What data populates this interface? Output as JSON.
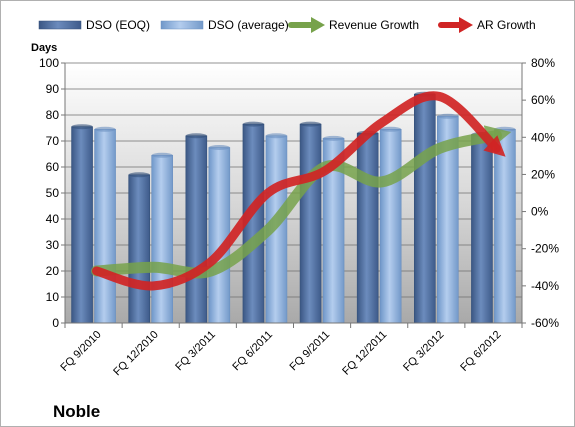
{
  "chart_data": {
    "type": "bar",
    "company": "Noble",
    "y_title": "Days",
    "categories": [
      "FQ 9/2010",
      "FQ 12/2010",
      "FQ 3/2011",
      "FQ 6/2011",
      "FQ 9/2011",
      "FQ 12/2011",
      "FQ 3/2012",
      "FQ 6/2012"
    ],
    "ylim": [
      0,
      100
    ],
    "y_ticks": [
      0,
      10,
      20,
      30,
      40,
      50,
      60,
      70,
      80,
      90,
      100
    ],
    "y2lim": [
      -60,
      80
    ],
    "y2_ticks": [
      -60,
      -40,
      -20,
      0,
      20,
      40,
      60,
      80
    ],
    "y2_tick_labels": [
      "-60%",
      "-40%",
      "-20%",
      "0%",
      "20%",
      "40%",
      "60%",
      "80%"
    ],
    "series": [
      {
        "name": "DSO (EOQ)",
        "type": "bar",
        "axis": "left",
        "color": "#4f6f9f",
        "values": [
          75.5,
          57,
          72,
          76.5,
          76.5,
          73,
          88,
          72.5
        ]
      },
      {
        "name": "DSO (average)",
        "type": "bar",
        "axis": "left",
        "color": "#8fb2dc",
        "values": [
          74.5,
          64.5,
          67.5,
          72,
          71,
          74.5,
          79.5,
          74.5
        ]
      },
      {
        "name": "Revenue Growth",
        "type": "line",
        "axis": "right",
        "unit": "%",
        "color": "#77a24b",
        "values": [
          -32,
          -30,
          -32,
          -10,
          24,
          16,
          34,
          41
        ]
      },
      {
        "name": "AR Growth",
        "type": "line",
        "axis": "right",
        "unit": "%",
        "color": "#d02424",
        "values": [
          -32,
          -40,
          -27,
          10,
          22,
          48,
          62,
          34
        ]
      }
    ],
    "legend_position": "top",
    "grid": true
  }
}
